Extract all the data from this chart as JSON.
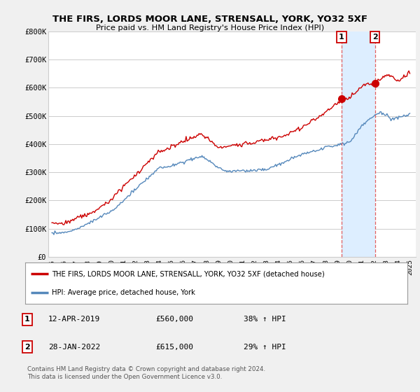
{
  "title": "THE FIRS, LORDS MOOR LANE, STRENSALL, YORK, YO32 5XF",
  "subtitle": "Price paid vs. HM Land Registry's House Price Index (HPI)",
  "ylabel_ticks": [
    "£0",
    "£100K",
    "£200K",
    "£300K",
    "£400K",
    "£500K",
    "£600K",
    "£700K",
    "£800K"
  ],
  "ytick_vals": [
    0,
    100000,
    200000,
    300000,
    400000,
    500000,
    600000,
    700000,
    800000
  ],
  "ylim": [
    0,
    800000
  ],
  "xlim_start": 1994.7,
  "xlim_end": 2025.5,
  "red_color": "#cc0000",
  "blue_color": "#5588bb",
  "shade_color": "#ddeeff",
  "background_color": "#f0f0f0",
  "plot_bg_color": "#ffffff",
  "grid_color": "#cccccc",
  "legend_label_red": "THE FIRS, LORDS MOOR LANE, STRENSALL, YORK, YO32 5XF (detached house)",
  "legend_label_blue": "HPI: Average price, detached house, York",
  "transaction1_x": 2019.28,
  "transaction1_y": 560000,
  "transaction2_x": 2022.08,
  "transaction2_y": 615000,
  "footer": "Contains HM Land Registry data © Crown copyright and database right 2024.\nThis data is licensed under the Open Government Licence v3.0.",
  "xtick_years": [
    1995,
    1996,
    1997,
    1998,
    1999,
    2000,
    2001,
    2002,
    2003,
    2004,
    2005,
    2006,
    2007,
    2008,
    2009,
    2010,
    2011,
    2012,
    2013,
    2014,
    2015,
    2016,
    2017,
    2018,
    2019,
    2020,
    2021,
    2022,
    2023,
    2024,
    2025
  ]
}
